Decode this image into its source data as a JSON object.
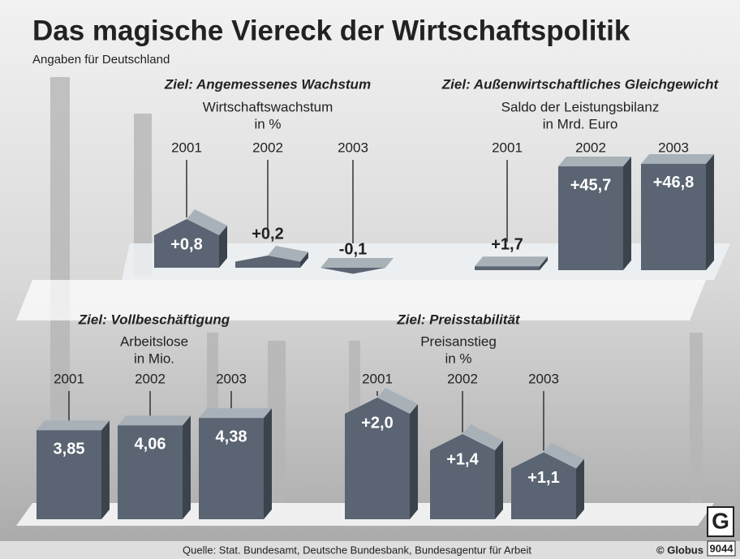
{
  "title": "Das magische Viereck der Wirtschaftspolitik",
  "subtitle": "Angaben für Deutschland",
  "source": "Quelle: Stat. Bundesamt, Deutsche Bundesbank, Bundesagentur für Arbeit",
  "credit": "© Globus",
  "logo": "G",
  "number": "9044",
  "chart_data": [
    {
      "type": "house",
      "title": "Ziel: Angemessenes Wachstum",
      "unit": [
        "Wirtschaftswachstum",
        "in %"
      ],
      "categories": [
        "2001",
        "2002",
        "2003"
      ],
      "values": [
        0.8,
        0.2,
        -0.1
      ],
      "value_labels": [
        "+0,8",
        "+0,2",
        "-0,1"
      ],
      "color": "#5a6472"
    },
    {
      "type": "box",
      "title": "Ziel: Außenwirtschaftliches Gleichgewicht",
      "unit": [
        "Saldo der Leistungsbilanz",
        "in Mrd. Euro"
      ],
      "categories": [
        "2001",
        "2002",
        "2003"
      ],
      "values": [
        1.7,
        45.7,
        46.8
      ],
      "value_labels": [
        "+1,7",
        "+45,7",
        "+46,8"
      ],
      "color": "#5a6472"
    },
    {
      "type": "box",
      "title": "Ziel: Vollbeschäftigung",
      "unit": [
        "Arbeitslose",
        "in Mio."
      ],
      "categories": [
        "2001",
        "2002",
        "2003"
      ],
      "values": [
        3.85,
        4.06,
        4.38
      ],
      "value_labels": [
        "3,85",
        "4,06",
        "4,38"
      ],
      "color": "#5a6472"
    },
    {
      "type": "house",
      "title": "Ziel: Preisstabilität",
      "unit": [
        "Preisanstieg",
        "in %"
      ],
      "categories": [
        "2001",
        "2002",
        "2003"
      ],
      "values": [
        2.0,
        1.4,
        1.1
      ],
      "value_labels": [
        "+2,0",
        "+1,4",
        "+1,1"
      ],
      "color": "#5a6472"
    }
  ]
}
